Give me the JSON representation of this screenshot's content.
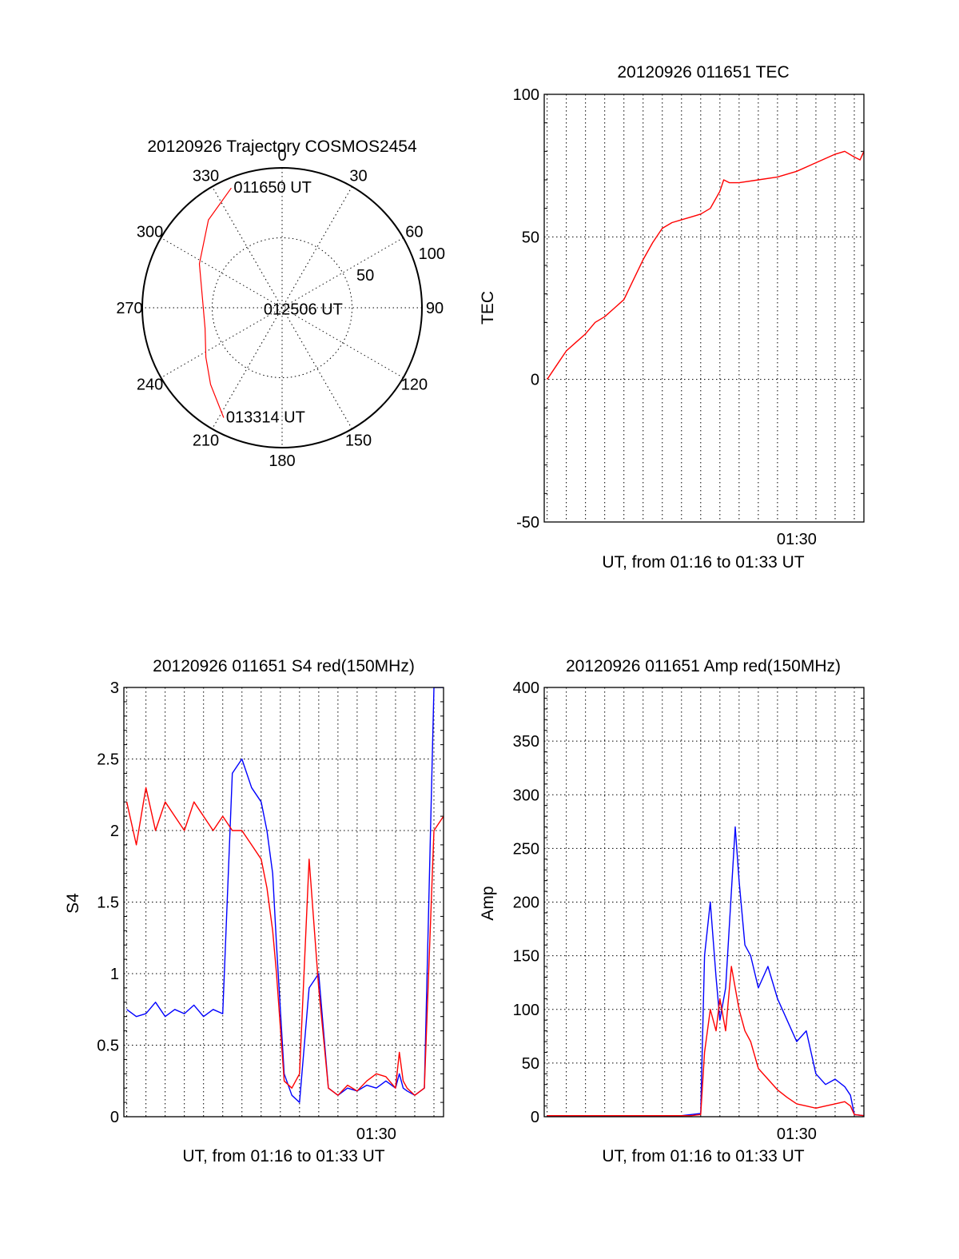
{
  "chart_data": [
    {
      "type": "polar",
      "title": "20120926 Trajectory COSMOS2454",
      "angle_labels": [
        "0",
        "30",
        "60",
        "90",
        "120",
        "150",
        "180",
        "210",
        "240",
        "270",
        "300",
        "330"
      ],
      "radius_labels": [
        "50",
        "100"
      ],
      "rlim": [
        0,
        100
      ],
      "grid": true,
      "series": [
        {
          "color": "#ff0000",
          "points": [
            {
              "azimuth": 337,
              "radius": 93
            },
            {
              "azimuth": 320,
              "radius": 82
            },
            {
              "azimuth": 298,
              "radius": 67
            },
            {
              "azimuth": 275,
              "radius": 57
            },
            {
              "azimuth": 255,
              "radius": 57
            },
            {
              "azimuth": 237,
              "radius": 65
            },
            {
              "azimuth": 223,
              "radius": 75
            },
            {
              "azimuth": 208,
              "radius": 89
            }
          ]
        }
      ],
      "annotations": [
        {
          "text": "011650 UT",
          "azimuth": 337,
          "radius": 93
        },
        {
          "text": "012506 UT",
          "azimuth": 265,
          "radius": 15
        },
        {
          "text": "013314 UT",
          "azimuth": 208,
          "radius": 89
        }
      ]
    },
    {
      "type": "line",
      "title": "20120926 011651 TEC",
      "xlabel": "UT, from 01:16 to 01:33 UT",
      "ylabel": "TEC",
      "x_tick_labels": [
        {
          "x": 30,
          "label": "01:30"
        }
      ],
      "xlim": [
        16.85,
        33.5
      ],
      "ylim": [
        -50,
        100
      ],
      "y_ticks": [
        -50,
        0,
        50,
        100
      ],
      "grid": true,
      "series": [
        {
          "color": "#ff0000",
          "x": [
            17.0,
            17.5,
            18.0,
            18.5,
            19.0,
            19.5,
            20.0,
            20.5,
            21.0,
            21.5,
            22.0,
            22.5,
            23.0,
            23.5,
            24.0,
            24.5,
            25.0,
            25.5,
            26.0,
            26.2,
            26.5,
            27.0,
            28.0,
            29.0,
            30.0,
            31.0,
            32.0,
            32.5,
            33.0,
            33.3,
            33.5
          ],
          "y": [
            0,
            5,
            10,
            13,
            16,
            20,
            22,
            25,
            28,
            35,
            42,
            48,
            53,
            55,
            56,
            57,
            58,
            60,
            66,
            70,
            69,
            69,
            70,
            71,
            73,
            76,
            79,
            80,
            78,
            77,
            80
          ]
        }
      ]
    },
    {
      "type": "line",
      "title": "20120926 011651 S4 red(150MHz)",
      "xlabel": "UT, from 01:16 to 01:33 UT",
      "ylabel": "S4",
      "x_tick_labels": [
        {
          "x": 30,
          "label": "01:30"
        }
      ],
      "xlim": [
        16.85,
        33.5
      ],
      "ylim": [
        0,
        3
      ],
      "y_ticks": [
        0,
        0.5,
        1,
        1.5,
        2,
        2.5,
        3
      ],
      "y_tick_labels": [
        "0",
        "0.5",
        "1",
        "1.5",
        "2",
        "2.5",
        "3"
      ],
      "grid": true,
      "series": [
        {
          "color": "#0000ff",
          "x": [
            17.0,
            17.5,
            18.0,
            18.5,
            19.0,
            19.5,
            20.0,
            20.5,
            21.0,
            21.5,
            22.0,
            22.5,
            23.0,
            23.5,
            24.0,
            24.3,
            24.6,
            24.8,
            25.2,
            25.6,
            26.0,
            26.5,
            27.0,
            27.5,
            28.0,
            28.5,
            29.0,
            29.5,
            30.0,
            30.5,
            31.0,
            31.2,
            31.4,
            31.6,
            32.0,
            32.5,
            33.0,
            33.5
          ],
          "y": [
            0.75,
            0.7,
            0.72,
            0.8,
            0.7,
            0.75,
            0.72,
            0.78,
            0.7,
            0.75,
            0.72,
            2.4,
            2.5,
            2.3,
            2.2,
            2.0,
            1.7,
            1.2,
            0.3,
            0.15,
            0.1,
            0.9,
            1.0,
            0.2,
            0.15,
            0.2,
            0.18,
            0.22,
            0.2,
            0.25,
            0.2,
            0.3,
            0.2,
            0.18,
            0.15,
            0.2,
            3.0,
            3.0
          ]
        },
        {
          "color": "#ff0000",
          "x": [
            17.0,
            17.5,
            18.0,
            18.5,
            19.0,
            19.5,
            20.0,
            20.5,
            21.0,
            21.5,
            22.0,
            22.5,
            23.0,
            23.5,
            24.0,
            24.3,
            24.6,
            24.8,
            25.2,
            25.6,
            26.0,
            26.5,
            27.0,
            27.5,
            28.0,
            28.5,
            29.0,
            29.5,
            30.0,
            30.5,
            31.0,
            31.2,
            31.4,
            31.6,
            32.0,
            32.5,
            33.0,
            33.5
          ],
          "y": [
            2.2,
            1.9,
            2.3,
            2.0,
            2.2,
            2.1,
            2.0,
            2.2,
            2.1,
            2.0,
            2.1,
            2.0,
            2.0,
            1.9,
            1.8,
            1.6,
            1.3,
            1.0,
            0.25,
            0.2,
            0.3,
            1.8,
            0.9,
            0.2,
            0.15,
            0.22,
            0.18,
            0.25,
            0.3,
            0.28,
            0.2,
            0.45,
            0.25,
            0.2,
            0.15,
            0.2,
            2.0,
            2.1
          ]
        }
      ]
    },
    {
      "type": "line",
      "title": "20120926 011651 Amp red(150MHz)",
      "xlabel": "UT, from 01:16 to 01:33 UT",
      "ylabel": "Amp",
      "x_tick_labels": [
        {
          "x": 30,
          "label": "01:30"
        }
      ],
      "xlim": [
        16.85,
        33.5
      ],
      "ylim": [
        0,
        400
      ],
      "y_ticks": [
        0,
        50,
        100,
        150,
        200,
        250,
        300,
        350,
        400
      ],
      "grid": true,
      "series": [
        {
          "color": "#0000ff",
          "x": [
            17.0,
            18.0,
            19.0,
            20.0,
            21.0,
            22.0,
            23.0,
            24.0,
            24.5,
            25.0,
            25.2,
            25.5,
            25.8,
            26.0,
            26.3,
            26.6,
            26.8,
            27.0,
            27.3,
            27.6,
            28.0,
            28.5,
            29.0,
            29.5,
            30.0,
            30.5,
            31.0,
            31.5,
            32.0,
            32.5,
            32.8,
            33.0,
            33.5
          ],
          "y": [
            1,
            1,
            1,
            1,
            1,
            1,
            1,
            1,
            2,
            3,
            150,
            200,
            130,
            90,
            120,
            210,
            270,
            220,
            160,
            150,
            120,
            140,
            110,
            90,
            70,
            80,
            40,
            30,
            35,
            28,
            20,
            2,
            1
          ]
        },
        {
          "color": "#ff0000",
          "x": [
            17.0,
            18.0,
            19.0,
            20.0,
            21.0,
            22.0,
            23.0,
            24.0,
            24.5,
            25.0,
            25.2,
            25.5,
            25.8,
            26.0,
            26.3,
            26.6,
            26.8,
            27.0,
            27.3,
            27.6,
            28.0,
            28.5,
            29.0,
            29.5,
            30.0,
            30.5,
            31.0,
            31.5,
            32.0,
            32.5,
            32.8,
            33.0,
            33.5
          ],
          "y": [
            1,
            1,
            1,
            1,
            1,
            1,
            1,
            1,
            1,
            2,
            60,
            100,
            80,
            110,
            80,
            140,
            120,
            100,
            80,
            70,
            45,
            35,
            25,
            18,
            12,
            10,
            8,
            10,
            12,
            14,
            10,
            2,
            1
          ]
        }
      ]
    }
  ]
}
